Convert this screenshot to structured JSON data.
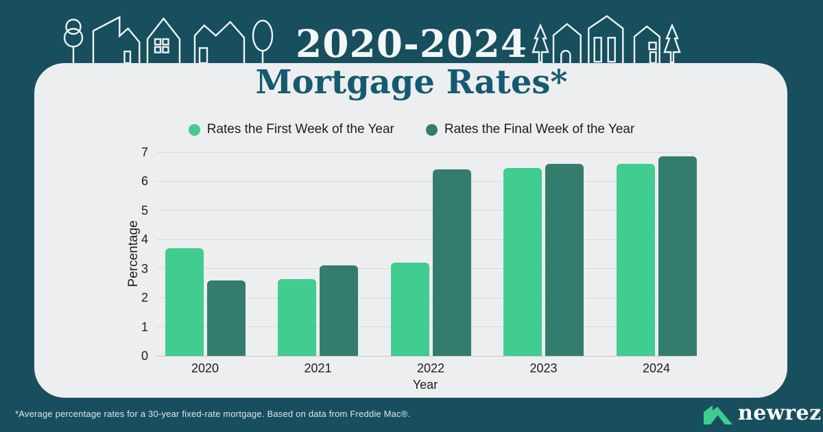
{
  "banner": {
    "year_range": "2020-2024"
  },
  "chart_data": {
    "type": "bar",
    "title": "Mortgage Rates*",
    "categories": [
      "2020",
      "2021",
      "2022",
      "2023",
      "2024"
    ],
    "series": [
      {
        "name": "Rates the First Week of the Year",
        "color": "#41CC90",
        "values": [
          3.7,
          2.65,
          3.2,
          6.45,
          6.6
        ]
      },
      {
        "name": "Rates the Final Week of the Year",
        "color": "#347C6E",
        "values": [
          2.6,
          3.1,
          6.4,
          6.6,
          6.85
        ]
      }
    ],
    "xlabel": "Year",
    "ylabel": "Percentage",
    "ylim": [
      0,
      7
    ],
    "yticks": [
      0,
      1,
      2,
      3,
      4,
      5,
      6,
      7
    ],
    "grid": true,
    "legend_position": "top"
  },
  "footer": {
    "footnote": "*Average percentage rates for a 30-year fixed-rate mortgage. Based on data from Freddie Mac®.",
    "brand_name": "newrez",
    "brand_mark": "®"
  },
  "colors": {
    "background": "#174F5E",
    "card": "#EDEEEF",
    "title": "#155A70",
    "first_week_green": "#41CC90",
    "final_week_green": "#347C6E"
  },
  "icons": {
    "skyline_left": "houses-and-trees-line-art",
    "skyline_right": "houses-and-trees-line-art",
    "brand_logo": "newrez-house-logo"
  }
}
